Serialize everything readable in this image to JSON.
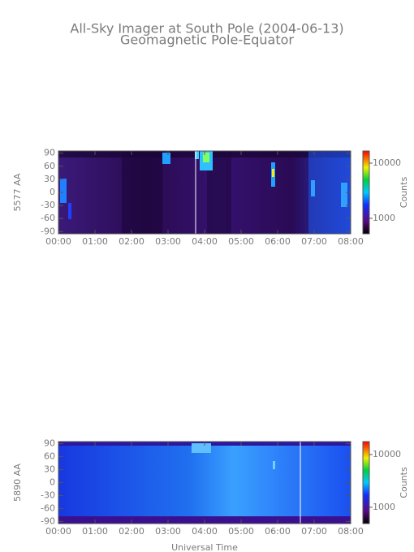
{
  "header": {
    "title": "All-Sky Imager at South Pole (2004-06-13)",
    "subtitle": "Geomagnetic Pole-Equator"
  },
  "chart_data": [
    {
      "type": "heatmap",
      "ylabel": "5577 AA",
      "xlim": [
        0,
        8
      ],
      "xticks": [
        {
          "value": 0,
          "label": "00:00"
        },
        {
          "value": 1,
          "label": "01:00"
        },
        {
          "value": 2,
          "label": "02:00"
        },
        {
          "value": 3,
          "label": "03:00"
        },
        {
          "value": 4,
          "label": "04:00"
        },
        {
          "value": 5,
          "label": "05:00"
        },
        {
          "value": 6,
          "label": "06:00"
        },
        {
          "value": 7,
          "label": "07:00"
        },
        {
          "value": 8,
          "label": "08:00"
        }
      ],
      "ylim": [
        -95,
        95
      ],
      "yticks": [
        90,
        60,
        30,
        0,
        -30,
        -60,
        -90
      ],
      "colorbar_label": "Counts",
      "colorbar_scale": "log",
      "colorbar_lim": [
        525,
        16600
      ],
      "colorbar_ticks": [
        10000,
        1000
      ]
    },
    {
      "type": "heatmap",
      "ylabel": "5890 AA",
      "xlabel": "Universal Time",
      "xlim": [
        0,
        8
      ],
      "xticks": [
        {
          "value": 0,
          "label": "00:00"
        },
        {
          "value": 1,
          "label": "01:00"
        },
        {
          "value": 2,
          "label": "02:00"
        },
        {
          "value": 3,
          "label": "03:00"
        },
        {
          "value": 4,
          "label": "04:00"
        },
        {
          "value": 5,
          "label": "05:00"
        },
        {
          "value": 6,
          "label": "06:00"
        },
        {
          "value": 7,
          "label": "07:00"
        },
        {
          "value": 8,
          "label": "08:00"
        }
      ],
      "ylim": [
        -95,
        95
      ],
      "yticks": [
        90,
        60,
        30,
        0,
        -30,
        -60,
        -90
      ],
      "colorbar_label": "Counts",
      "colorbar_scale": "log",
      "colorbar_lim": [
        490,
        17600
      ],
      "colorbar_ticks": [
        10000,
        1000
      ]
    }
  ]
}
